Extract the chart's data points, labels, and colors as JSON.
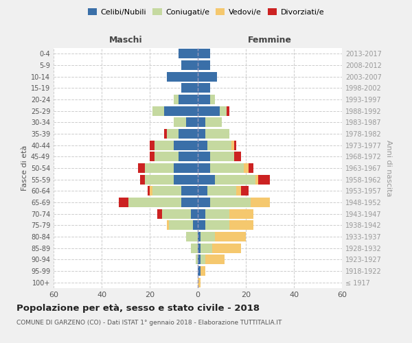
{
  "age_groups": [
    "100+",
    "95-99",
    "90-94",
    "85-89",
    "80-84",
    "75-79",
    "70-74",
    "65-69",
    "60-64",
    "55-59",
    "50-54",
    "45-49",
    "40-44",
    "35-39",
    "30-34",
    "25-29",
    "20-24",
    "15-19",
    "10-14",
    "5-9",
    "0-4"
  ],
  "birth_years": [
    "≤ 1917",
    "1918-1922",
    "1923-1927",
    "1928-1932",
    "1933-1937",
    "1938-1942",
    "1943-1947",
    "1948-1952",
    "1953-1957",
    "1958-1962",
    "1963-1967",
    "1968-1972",
    "1973-1977",
    "1978-1982",
    "1983-1987",
    "1988-1992",
    "1993-1997",
    "1998-2002",
    "2003-2007",
    "2008-2012",
    "2013-2017"
  ],
  "colors": {
    "celibe": "#3a6fa8",
    "coniugato": "#c5d9a0",
    "vedovo": "#f5c86e",
    "divorziato": "#cc2222"
  },
  "males": {
    "celibe": [
      0,
      0,
      0,
      0,
      0,
      2,
      3,
      7,
      7,
      10,
      10,
      8,
      10,
      8,
      5,
      14,
      8,
      7,
      13,
      7,
      8
    ],
    "coniugato": [
      0,
      0,
      1,
      3,
      5,
      10,
      12,
      22,
      12,
      12,
      12,
      10,
      8,
      5,
      5,
      5,
      2,
      0,
      0,
      0,
      0
    ],
    "vedovo": [
      0,
      0,
      0,
      0,
      0,
      1,
      0,
      0,
      1,
      0,
      0,
      0,
      0,
      0,
      0,
      0,
      0,
      0,
      0,
      0,
      0
    ],
    "divorziato": [
      0,
      0,
      0,
      0,
      0,
      0,
      2,
      4,
      1,
      2,
      3,
      2,
      2,
      1,
      0,
      0,
      0,
      0,
      0,
      0,
      0
    ]
  },
  "females": {
    "celibe": [
      0,
      1,
      1,
      1,
      1,
      3,
      3,
      5,
      4,
      7,
      5,
      5,
      4,
      3,
      3,
      9,
      5,
      5,
      8,
      5,
      5
    ],
    "coniugato": [
      0,
      0,
      2,
      5,
      6,
      10,
      10,
      17,
      12,
      17,
      14,
      10,
      10,
      10,
      7,
      3,
      2,
      0,
      0,
      0,
      0
    ],
    "vedovo": [
      1,
      2,
      8,
      12,
      13,
      10,
      10,
      8,
      2,
      1,
      2,
      0,
      1,
      0,
      0,
      0,
      0,
      0,
      0,
      0,
      0
    ],
    "divorziato": [
      0,
      0,
      0,
      0,
      0,
      0,
      0,
      0,
      3,
      5,
      2,
      3,
      1,
      0,
      0,
      1,
      0,
      0,
      0,
      0,
      0
    ]
  },
  "xlim": 60,
  "xticks": [
    -60,
    -40,
    -20,
    0,
    20,
    40,
    60
  ],
  "xticklabels": [
    "60",
    "40",
    "20",
    "0",
    "20",
    "40",
    "60"
  ],
  "title": "Popolazione per età, sesso e stato civile - 2018",
  "subtitle": "COMUNE DI GARZENO (CO) - Dati ISTAT 1° gennaio 2018 - Elaborazione TUTTITALIA.IT",
  "ylabel_left": "Fasce di età",
  "ylabel_right": "Anni di nascita",
  "label_maschi": "Maschi",
  "label_femmine": "Femmine",
  "legend_labels": [
    "Celibi/Nubili",
    "Coniugati/e",
    "Vedovi/e",
    "Divorziati/e"
  ],
  "background_color": "#f0f0f0",
  "plot_bg_color": "#ffffff",
  "grid_color": "#cccccc"
}
